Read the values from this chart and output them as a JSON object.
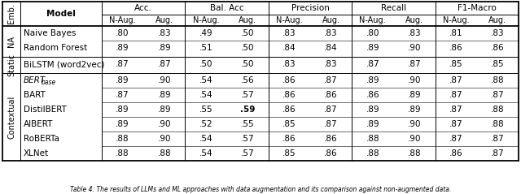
{
  "caption": "Table 4: The results of LLMs and ML approaches with data augmentation and its comparison against non-augmented data.",
  "models": [
    "Naive Bayes",
    "Random Forest",
    "BiLSTM (word2vec)",
    "BERTbase",
    "BART",
    "DistilBERT",
    "AlBERT",
    "RoBERTa",
    "XLNet"
  ],
  "model_italic": [
    false,
    false,
    false,
    true,
    false,
    false,
    false,
    false,
    false
  ],
  "model_subscript": [
    false,
    false,
    false,
    "base",
    false,
    false,
    false,
    false,
    false
  ],
  "emb_groups": [
    {
      "label": "NA",
      "start": 0,
      "end": 2
    },
    {
      "label": "Static",
      "start": 2,
      "end": 3
    },
    {
      "label": "Contextual",
      "start": 3,
      "end": 9
    }
  ],
  "metric_labels": [
    "Acc.",
    "Bal. Acc",
    "Precision",
    "Recall",
    "F1-Macro"
  ],
  "sub_labels": [
    "N-Aug.",
    "Aug."
  ],
  "data": [
    [
      ".80",
      ".83",
      ".49",
      ".50",
      ".83",
      ".83",
      ".80",
      ".83",
      ".81",
      ".83"
    ],
    [
      ".89",
      ".89",
      ".51",
      ".50",
      ".84",
      ".84",
      ".89",
      ".90",
      ".86",
      ".86"
    ],
    [
      ".87",
      ".87",
      ".50",
      ".50",
      ".83",
      ".83",
      ".87",
      ".87",
      ".85",
      ".85"
    ],
    [
      ".89",
      ".90",
      ".54",
      ".56",
      ".86",
      ".87",
      ".89",
      ".90",
      ".87",
      ".88"
    ],
    [
      ".87",
      ".89",
      ".54",
      ".57",
      ".86",
      ".86",
      ".86",
      ".89",
      ".87",
      ".87"
    ],
    [
      ".89",
      ".89",
      ".55",
      ".59",
      ".86",
      ".87",
      ".89",
      ".89",
      ".87",
      ".88"
    ],
    [
      ".89",
      ".90",
      ".52",
      ".55",
      ".85",
      ".87",
      ".89",
      ".90",
      ".87",
      ".88"
    ],
    [
      ".88",
      ".90",
      ".54",
      ".57",
      ".86",
      ".86",
      ".88",
      ".90",
      ".87",
      ".87"
    ],
    [
      ".88",
      ".88",
      ".54",
      ".57",
      ".85",
      ".86",
      ".88",
      ".88",
      ".86",
      ".87"
    ]
  ],
  "bold_cells": [
    [
      5,
      3
    ]
  ],
  "background_color": "#ffffff"
}
